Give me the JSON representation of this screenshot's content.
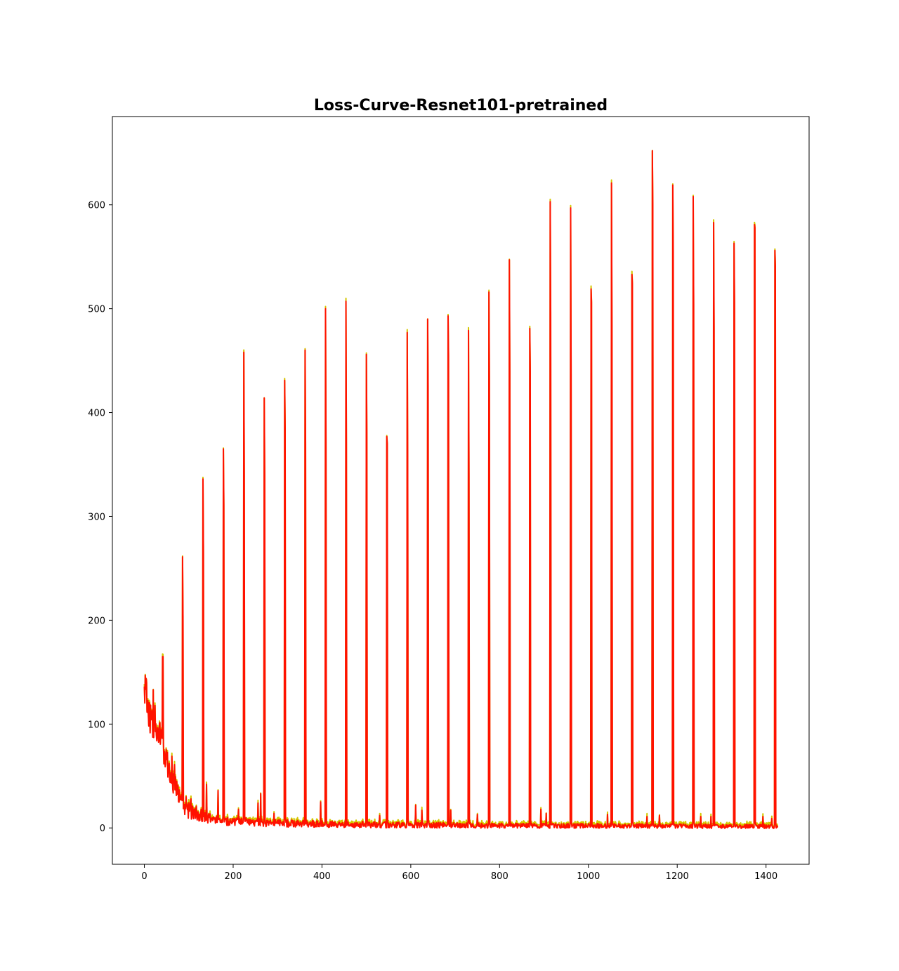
{
  "chart_data": {
    "type": "line",
    "title": "Loss-Curve-Resnet101-pretrained",
    "xlabel": "",
    "ylabel": "",
    "xlim": [
      -72,
      1497
    ],
    "ylim": [
      -35,
      685
    ],
    "xticks": [
      0,
      200,
      400,
      600,
      800,
      1000,
      1200,
      1400
    ],
    "yticks": [
      0,
      100,
      200,
      300,
      400,
      500,
      600
    ],
    "grid": false,
    "legend": "none",
    "colors": {
      "background_series": "#d4c800",
      "foreground_series": "#ff1100"
    },
    "baseline": {
      "points": [
        [
          0,
          135
        ],
        [
          5,
          127
        ],
        [
          10,
          112
        ],
        [
          15,
          102
        ],
        [
          20,
          96
        ],
        [
          25,
          93
        ],
        [
          30,
          90
        ],
        [
          35,
          88
        ],
        [
          40,
          85
        ],
        [
          45,
          72
        ],
        [
          50,
          64
        ],
        [
          55,
          55
        ],
        [
          60,
          49
        ],
        [
          65,
          44
        ],
        [
          70,
          39
        ],
        [
          75,
          34
        ],
        [
          80,
          30
        ],
        [
          85,
          26
        ],
        [
          90,
          22
        ],
        [
          95,
          20
        ],
        [
          100,
          18
        ],
        [
          110,
          15
        ],
        [
          120,
          13
        ],
        [
          130,
          11
        ],
        [
          145,
          9
        ],
        [
          160,
          8
        ],
        [
          180,
          7
        ],
        [
          200,
          6
        ],
        [
          230,
          6
        ],
        [
          260,
          5
        ],
        [
          300,
          4.5
        ],
        [
          360,
          4
        ],
        [
          450,
          3.5
        ],
        [
          550,
          3
        ],
        [
          700,
          2.5
        ],
        [
          900,
          2
        ],
        [
          1100,
          2
        ],
        [
          1300,
          1.6
        ],
        [
          1426,
          1.5
        ]
      ],
      "noise_amplitude": [
        [
          0,
          16
        ],
        [
          40,
          14
        ],
        [
          80,
          11
        ],
        [
          120,
          7
        ],
        [
          200,
          5
        ],
        [
          400,
          4
        ],
        [
          800,
          3
        ],
        [
          1426,
          2.5
        ]
      ]
    },
    "spikes": [
      {
        "x": 41,
        "peak": 165,
        "second": 165
      },
      {
        "x": 86,
        "peak": 261,
        "second": 204
      },
      {
        "x": 132,
        "peak": 336,
        "second": 265
      },
      {
        "x": 178,
        "peak": 365,
        "second": 311
      },
      {
        "x": 224,
        "peak": 458,
        "second": 342
      },
      {
        "x": 270,
        "peak": 414,
        "second": 339
      },
      {
        "x": 316,
        "peak": 431,
        "second": 385
      },
      {
        "x": 362,
        "peak": 460,
        "second": 370
      },
      {
        "x": 408,
        "peak": 500,
        "second": 370
      },
      {
        "x": 454,
        "peak": 507,
        "second": 370
      },
      {
        "x": 500,
        "peak": 456,
        "second": 380
      },
      {
        "x": 546,
        "peak": 377,
        "second": 370
      },
      {
        "x": 592,
        "peak": 477,
        "second": 360
      },
      {
        "x": 638,
        "peak": 490,
        "second": 425
      },
      {
        "x": 684,
        "peak": 493,
        "second": 455
      },
      {
        "x": 730,
        "peak": 479,
        "second": 340
      },
      {
        "x": 776,
        "peak": 516,
        "second": 434
      },
      {
        "x": 822,
        "peak": 547,
        "second": 440
      },
      {
        "x": 868,
        "peak": 481,
        "second": 440
      },
      {
        "x": 914,
        "peak": 603,
        "second": 495
      },
      {
        "x": 960,
        "peak": 597,
        "second": 437
      },
      {
        "x": 1006,
        "peak": 519,
        "second": 506
      },
      {
        "x": 1052,
        "peak": 621,
        "second": 485
      },
      {
        "x": 1098,
        "peak": 533,
        "second": 524
      },
      {
        "x": 1144,
        "peak": 652,
        "second": 600
      },
      {
        "x": 1190,
        "peak": 619,
        "second": 555
      },
      {
        "x": 1236,
        "peak": 608,
        "second": 504
      },
      {
        "x": 1282,
        "peak": 583,
        "second": 481
      },
      {
        "x": 1328,
        "peak": 563,
        "second": 506
      },
      {
        "x": 1374,
        "peak": 581,
        "second": 578
      },
      {
        "x": 1420,
        "peak": 556,
        "second": 541
      }
    ],
    "small_bumps": [
      {
        "x": 20,
        "y": 133
      },
      {
        "x": 24,
        "y": 118
      },
      {
        "x": 62,
        "y": 69
      },
      {
        "x": 68,
        "y": 61
      },
      {
        "x": 94,
        "y": 30
      },
      {
        "x": 105,
        "y": 28
      },
      {
        "x": 140,
        "y": 42
      },
      {
        "x": 166,
        "y": 36
      },
      {
        "x": 212,
        "y": 18
      },
      {
        "x": 256,
        "y": 24
      },
      {
        "x": 262,
        "y": 33
      },
      {
        "x": 292,
        "y": 14
      },
      {
        "x": 397,
        "y": 25
      },
      {
        "x": 530,
        "y": 12
      },
      {
        "x": 611,
        "y": 22
      },
      {
        "x": 625,
        "y": 17
      },
      {
        "x": 690,
        "y": 17
      },
      {
        "x": 750,
        "y": 13
      },
      {
        "x": 893,
        "y": 18
      },
      {
        "x": 905,
        "y": 14
      },
      {
        "x": 1043,
        "y": 13
      },
      {
        "x": 1132,
        "y": 11
      },
      {
        "x": 1160,
        "y": 12
      },
      {
        "x": 1253,
        "y": 11
      },
      {
        "x": 1276,
        "y": 11
      },
      {
        "x": 1393,
        "y": 11
      },
      {
        "x": 1413,
        "y": 9
      }
    ]
  }
}
